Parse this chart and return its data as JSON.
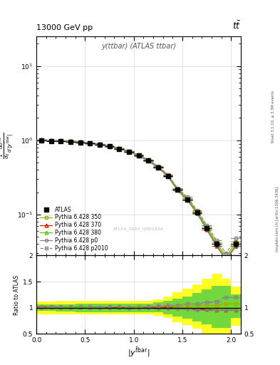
{
  "title_top": "13000 GeV pp",
  "title_right": "tt",
  "plot_title": "y(ttbar) (ATLAS ttbar)",
  "watermark": "ATLAS_2020_I1801434",
  "right_label1": "Rivet 3.1.10, ≥ 3.3M events",
  "right_label2": "mcplots.cern.ch [arXiv:1306.3436]",
  "x_edges": [
    0.0,
    0.1,
    0.2,
    0.3,
    0.4,
    0.5,
    0.6,
    0.7,
    0.8,
    0.9,
    1.0,
    1.1,
    1.2,
    1.3,
    1.4,
    1.5,
    1.6,
    1.7,
    1.8,
    1.9,
    2.0,
    2.1
  ],
  "x_centers": [
    0.05,
    0.15,
    0.25,
    0.35,
    0.45,
    0.55,
    0.65,
    0.75,
    0.85,
    0.95,
    1.05,
    1.15,
    1.25,
    1.35,
    1.45,
    1.55,
    1.65,
    1.75,
    1.85,
    1.95,
    2.05
  ],
  "atlas_y": [
    1.0,
    0.975,
    0.97,
    0.96,
    0.935,
    0.905,
    0.875,
    0.825,
    0.77,
    0.705,
    0.62,
    0.53,
    0.43,
    0.33,
    0.215,
    0.16,
    0.107,
    0.065,
    0.04,
    0.025,
    0.04
  ],
  "atlas_yerr": [
    0.025,
    0.025,
    0.025,
    0.025,
    0.025,
    0.022,
    0.02,
    0.018,
    0.016,
    0.014,
    0.013,
    0.011,
    0.01,
    0.009,
    0.008,
    0.007,
    0.006,
    0.005,
    0.004,
    0.003,
    0.005
  ],
  "py350_y": [
    1.01,
    0.99,
    0.98,
    0.97,
    0.945,
    0.915,
    0.88,
    0.835,
    0.78,
    0.715,
    0.632,
    0.543,
    0.441,
    0.342,
    0.222,
    0.166,
    0.111,
    0.068,
    0.042,
    0.027,
    0.043
  ],
  "py370_y": [
    1.02,
    0.995,
    0.985,
    0.975,
    0.95,
    0.92,
    0.885,
    0.835,
    0.775,
    0.71,
    0.625,
    0.535,
    0.435,
    0.335,
    0.215,
    0.16,
    0.105,
    0.063,
    0.038,
    0.024,
    0.038
  ],
  "py380_y": [
    1.005,
    0.99,
    0.975,
    0.965,
    0.94,
    0.91,
    0.875,
    0.825,
    0.77,
    0.705,
    0.62,
    0.53,
    0.43,
    0.33,
    0.215,
    0.16,
    0.107,
    0.065,
    0.04,
    0.025,
    0.04
  ],
  "pyp0_y": [
    1.0,
    0.985,
    0.97,
    0.96,
    0.935,
    0.905,
    0.87,
    0.82,
    0.765,
    0.695,
    0.615,
    0.525,
    0.425,
    0.325,
    0.21,
    0.155,
    0.103,
    0.062,
    0.038,
    0.024,
    0.038
  ],
  "pyp2010_y": [
    1.01,
    1.0,
    0.99,
    0.98,
    0.955,
    0.925,
    0.89,
    0.84,
    0.785,
    0.715,
    0.63,
    0.545,
    0.445,
    0.345,
    0.225,
    0.172,
    0.115,
    0.072,
    0.045,
    0.03,
    0.048
  ],
  "color_atlas": "#000000",
  "color_350": "#aaaa00",
  "color_370": "#cc2200",
  "color_380": "#55cc00",
  "color_p0": "#888888",
  "color_p2010": "#888888",
  "ylim_main": [
    0.028,
    25
  ],
  "ylim_ratio": [
    0.5,
    2.0
  ],
  "xlim": [
    0.0,
    2.1
  ],
  "green_band_lo": [
    0.94,
    0.94,
    0.93,
    0.93,
    0.92,
    0.92,
    0.92,
    0.92,
    0.92,
    0.92,
    0.92,
    0.92,
    0.91,
    0.88,
    0.83,
    0.79,
    0.74,
    0.68,
    0.62,
    0.62,
    0.8
  ],
  "green_band_hi": [
    1.06,
    1.06,
    1.07,
    1.07,
    1.08,
    1.08,
    1.08,
    1.08,
    1.08,
    1.08,
    1.08,
    1.08,
    1.1,
    1.13,
    1.18,
    1.22,
    1.28,
    1.35,
    1.42,
    1.42,
    1.25
  ],
  "yellow_band_lo": [
    0.88,
    0.88,
    0.87,
    0.87,
    0.87,
    0.87,
    0.87,
    0.87,
    0.87,
    0.87,
    0.87,
    0.87,
    0.85,
    0.8,
    0.73,
    0.67,
    0.6,
    0.5,
    0.42,
    0.42,
    0.65
  ],
  "yellow_band_hi": [
    1.12,
    1.12,
    1.13,
    1.13,
    1.13,
    1.13,
    1.13,
    1.13,
    1.13,
    1.13,
    1.13,
    1.13,
    1.16,
    1.22,
    1.3,
    1.36,
    1.44,
    1.55,
    1.65,
    1.55,
    1.4
  ]
}
